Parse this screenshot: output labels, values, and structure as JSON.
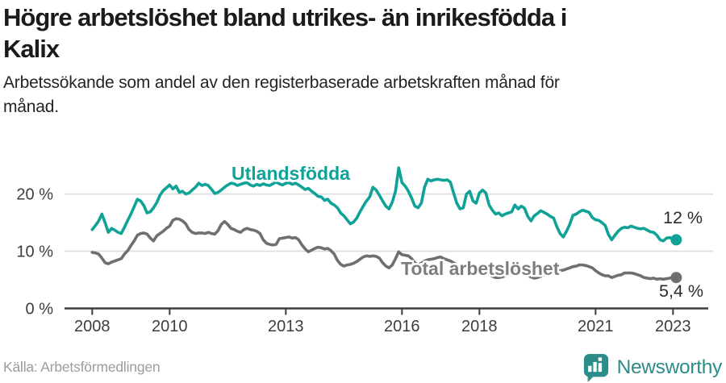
{
  "header": {
    "title_lines": [
      "Högre arbetslöshet bland utrikes- än inrikesfödda i",
      "Kalix"
    ],
    "subtitle_lines": [
      "Arbetssökande som andel av den registerbaserade arbetskraften månad för",
      "månad."
    ]
  },
  "footer": {
    "source": "Källa: Arbetsförmedlingen",
    "brand": "Newsworthy"
  },
  "colors": {
    "accent_teal": "#0fa297",
    "line_gray": "#6f6f6f",
    "label_gray": "#7d7d7d",
    "axis": "#3d3d3d",
    "gridline": "#dcdcdc",
    "end_label_text": "#2b2b2b",
    "brand_teal": "#2b8c89"
  },
  "chart_data": {
    "type": "line",
    "title": "Högre arbetslöshet bland utrikes- än inrikesfödda i Kalix",
    "subtitle": "Arbetssökande som andel av den registerbaserade arbetskraften månad för månad.",
    "x_unit": "month",
    "x_range": [
      "2008-01",
      "2023-02"
    ],
    "ylim": [
      0,
      27
    ],
    "grid": "horizontal",
    "y_ticks": [
      {
        "value": 20,
        "label": "20 %"
      },
      {
        "value": 10,
        "label": "10 %"
      },
      {
        "value": 0,
        "label": "0 %"
      }
    ],
    "x_ticks": [
      {
        "year": 2008,
        "label": "2008"
      },
      {
        "year": 2010,
        "label": "2010"
      },
      {
        "year": 2013,
        "label": "2013"
      },
      {
        "year": 2016,
        "label": "2016"
      },
      {
        "year": 2018,
        "label": "2018"
      },
      {
        "year": 2021,
        "label": "2021"
      },
      {
        "year": 2023,
        "label": "2023"
      }
    ],
    "series": [
      {
        "name": "utlandsfodda",
        "label": "Utlandsfödda",
        "color": "#0fa297",
        "end_label": "12 %",
        "values": [
          13.8,
          14.5,
          15.3,
          16.5,
          15.0,
          13.3,
          14.0,
          13.7,
          13.3,
          13.1,
          14.2,
          15.4,
          16.5,
          17.8,
          19.1,
          18.8,
          18.0,
          16.7,
          16.9,
          17.6,
          18.5,
          19.8,
          20.6,
          21.1,
          21.6,
          20.9,
          21.4,
          20.3,
          20.5,
          20.0,
          20.2,
          20.7,
          21.2,
          21.9,
          21.5,
          21.7,
          21.5,
          20.8,
          20.1,
          20.3,
          20.7,
          21.2,
          21.6,
          21.9,
          21.8,
          21.5,
          21.7,
          21.9,
          22.0,
          21.6,
          21.4,
          21.7,
          21.5,
          21.8,
          21.6,
          21.5,
          21.8,
          22.1,
          21.8,
          21.6,
          21.9,
          22.0,
          21.7,
          21.9,
          21.6,
          21.2,
          20.8,
          21.0,
          20.5,
          20.1,
          19.6,
          19.5,
          18.9,
          19.1,
          18.4,
          18.1,
          17.6,
          16.7,
          16.2,
          15.5,
          14.8,
          15.1,
          15.8,
          16.9,
          17.9,
          18.8,
          19.5,
          21.2,
          20.7,
          19.8,
          18.8,
          17.9,
          17.4,
          18.6,
          20.5,
          24.6,
          22.0,
          21.4,
          20.5,
          19.3,
          17.9,
          17.6,
          18.4,
          21.2,
          22.6,
          22.3,
          22.5,
          22.6,
          22.5,
          22.4,
          22.5,
          22.1,
          20.2,
          18.4,
          17.4,
          17.6,
          20.0,
          20.5,
          18.8,
          18.4,
          20.2,
          20.7,
          20.2,
          18.1,
          17.2,
          16.5,
          16.7,
          16.2,
          16.5,
          16.7,
          16.9,
          18.1,
          17.4,
          17.9,
          17.5,
          16.1,
          15.3,
          16.2,
          16.6,
          17.1,
          16.8,
          16.5,
          16.1,
          15.8,
          14.3,
          13.1,
          12.5,
          13.5,
          14.7,
          16.3,
          16.5,
          16.9,
          17.2,
          17.0,
          16.8,
          15.9,
          15.5,
          15.4,
          15.0,
          14.5,
          12.9,
          12.0,
          12.8,
          13.5,
          14.0,
          14.2,
          14.1,
          14.4,
          14.2,
          14.0,
          13.9,
          14.0,
          13.7,
          13.4,
          13.3,
          12.8,
          12.0,
          11.8,
          12.3,
          12.4,
          12.1,
          12.0
        ]
      },
      {
        "name": "total",
        "label": "Total arbetslöshet",
        "color": "#6f6f6f",
        "end_label": "5,4 %",
        "values": [
          9.8,
          9.7,
          9.5,
          8.8,
          8.0,
          7.8,
          8.1,
          8.3,
          8.5,
          8.7,
          9.5,
          10.1,
          11.0,
          11.8,
          12.8,
          13.1,
          13.2,
          13.0,
          12.3,
          11.8,
          12.7,
          13.1,
          13.5,
          14.0,
          14.4,
          15.4,
          15.7,
          15.6,
          15.3,
          14.8,
          13.8,
          13.3,
          13.1,
          13.2,
          13.2,
          13.1,
          13.3,
          13.1,
          13.0,
          13.6,
          14.7,
          15.2,
          14.7,
          14.0,
          13.8,
          13.5,
          13.3,
          13.8,
          14.0,
          13.8,
          13.7,
          13.5,
          13.1,
          12.0,
          11.4,
          11.2,
          11.1,
          11.2,
          12.2,
          12.3,
          12.4,
          12.5,
          12.3,
          12.4,
          12.0,
          11.1,
          10.4,
          9.9,
          10.2,
          10.5,
          10.7,
          10.6,
          10.4,
          10.5,
          10.1,
          9.5,
          8.4,
          7.7,
          7.4,
          7.6,
          7.7,
          7.9,
          8.2,
          8.6,
          9.0,
          9.2,
          9.1,
          9.2,
          9.1,
          8.8,
          8.0,
          7.4,
          7.1,
          7.6,
          8.7,
          9.9,
          9.4,
          9.3,
          9.2,
          8.7,
          8.0,
          7.6,
          7.9,
          8.3,
          8.5,
          8.6,
          8.7,
          8.9,
          9.0,
          8.7,
          8.5,
          8.3,
          8.0,
          7.6,
          7.2,
          7.0,
          7.2,
          7.4,
          7.4,
          7.3,
          7.2,
          7.0,
          6.6,
          6.0,
          5.6,
          5.4,
          5.4,
          5.5,
          5.7,
          6.0,
          6.3,
          6.5,
          6.6,
          6.5,
          6.2,
          5.8,
          5.5,
          5.3,
          5.4,
          5.6,
          5.9,
          6.2,
          6.4,
          6.5,
          6.6,
          6.6,
          6.7,
          6.9,
          7.1,
          7.3,
          7.4,
          7.6,
          7.6,
          7.5,
          7.3,
          7.1,
          6.6,
          6.2,
          5.9,
          5.7,
          5.7,
          5.4,
          5.6,
          5.8,
          5.9,
          6.2,
          6.2,
          6.2,
          6.1,
          5.9,
          5.7,
          5.4,
          5.3,
          5.2,
          5.3,
          5.1,
          5.2,
          5.1,
          5.2,
          5.3,
          5.4,
          5.4
        ]
      }
    ]
  }
}
